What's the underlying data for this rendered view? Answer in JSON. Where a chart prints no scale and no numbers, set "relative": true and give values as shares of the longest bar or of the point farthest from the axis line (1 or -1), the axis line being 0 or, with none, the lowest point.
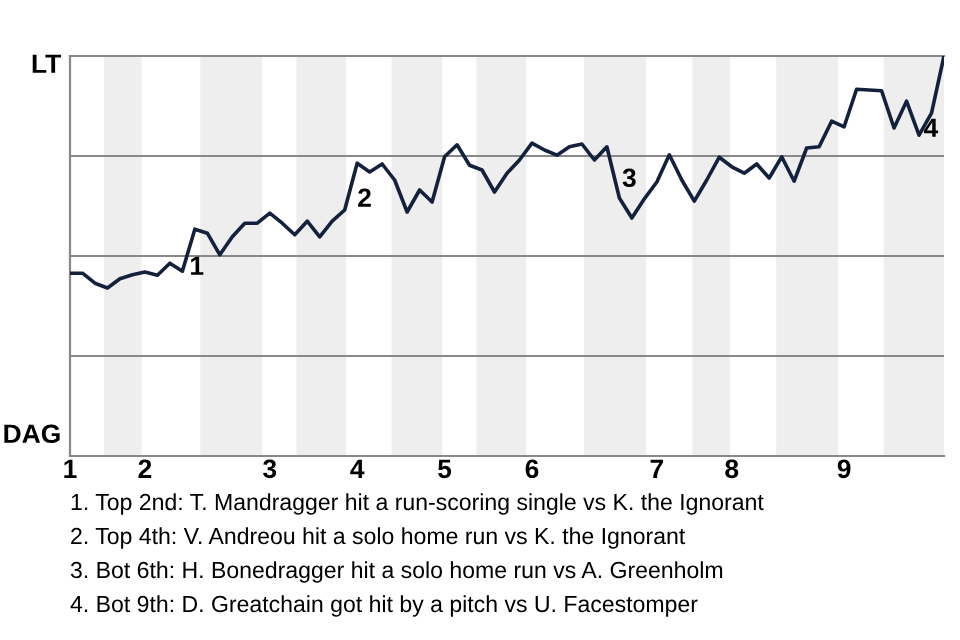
{
  "chart_data": {
    "type": "line",
    "color": "#14213d",
    "relative": true,
    "categories": [
      "1",
      null,
      null,
      null,
      null,
      null,
      "2",
      null,
      null,
      null,
      null,
      null,
      null,
      null,
      null,
      null,
      "3",
      null,
      null,
      null,
      null,
      null,
      null,
      "4",
      null,
      null,
      null,
      null,
      null,
      null,
      "5",
      null,
      null,
      null,
      null,
      null,
      null,
      "6",
      null,
      null,
      null,
      null,
      null,
      null,
      null,
      null,
      null,
      "7",
      null,
      null,
      null,
      null,
      null,
      "8",
      null,
      null,
      null,
      null,
      null,
      null,
      null,
      null,
      "9",
      null,
      null,
      null,
      null,
      null,
      null,
      null,
      null
    ],
    "values": [
      0.457,
      0.457,
      0.432,
      0.42,
      0.443,
      0.453,
      0.46,
      0.452,
      0.482,
      0.462,
      0.567,
      0.557,
      0.503,
      0.548,
      0.582,
      0.582,
      0.607,
      0.582,
      0.553,
      0.587,
      0.548,
      0.587,
      0.615,
      0.732,
      0.71,
      0.73,
      0.69,
      0.61,
      0.665,
      0.635,
      0.748,
      0.778,
      0.727,
      0.715,
      0.66,
      0.707,
      0.74,
      0.782,
      0.765,
      0.752,
      0.773,
      0.78,
      0.74,
      0.773,
      0.645,
      0.595,
      0.643,
      0.685,
      0.753,
      0.69,
      0.637,
      0.69,
      0.747,
      0.723,
      0.707,
      0.73,
      0.695,
      0.748,
      0.687,
      0.77,
      0.773,
      0.837,
      0.823,
      0.917,
      0.915,
      0.913,
      0.82,
      0.887,
      0.802,
      0.857,
      1
    ],
    "grid": false,
    "legend": false,
    "marker": "none",
    "line_style": "solid",
    "ref_lines": [
      {
        "axis": "y",
        "value": 0.25,
        "color": "#888888"
      },
      {
        "axis": "y",
        "value": 0.5,
        "color": "#888888"
      },
      {
        "axis": "y",
        "value": 0.75,
        "color": "#888888"
      }
    ],
    "annotations": [
      "LT",
      "DAG",
      "1",
      "2",
      "3",
      "4",
      "1. Top 2nd: T. Mandragger hit a run-scoring single vs K. the Ignorant",
      "2. Top 4th: V. Andreou hit a solo home run vs K. the Ignorant",
      "3. Bot 6th: H. Bonedragger hit a solo home run vs A. Greenholm",
      "4. Bot 9th: D. Greatchain got hit by a pitch vs U. Facestomper"
    ]
  }
}
